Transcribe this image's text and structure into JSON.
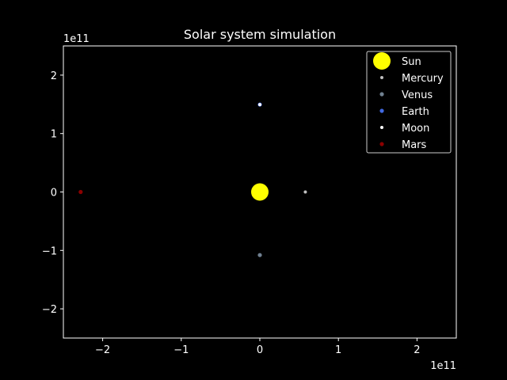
{
  "chart_data": {
    "type": "scatter",
    "title": "Solar system simulation",
    "xlabel": "",
    "ylabel": "",
    "x_offset_label": "1e11",
    "y_offset_label": "1e11",
    "xlim": [
      -250000000000.0,
      250000000000.0
    ],
    "ylim": [
      -250000000000.0,
      250000000000.0
    ],
    "xticks": [
      -200000000000.0,
      -100000000000.0,
      0,
      100000000000.0,
      200000000000.0
    ],
    "yticks": [
      -200000000000.0,
      -100000000000.0,
      0,
      100000000000.0,
      200000000000.0
    ],
    "xtick_labels": [
      "−2",
      "−1",
      "0",
      "1",
      "2"
    ],
    "ytick_labels": [
      "−2",
      "−1",
      "0",
      "1",
      "2"
    ],
    "grid": false,
    "legend_position": "top-right",
    "background": "#000000",
    "foreground": "#ffffff",
    "series": [
      {
        "name": "Sun",
        "color": "#ffff00",
        "size": "large",
        "points": [
          [
            0,
            0
          ]
        ]
      },
      {
        "name": "Mercury",
        "color": "#c0c0c0",
        "size": "tiny",
        "points": [
          [
            57900000000.0,
            0
          ]
        ]
      },
      {
        "name": "Venus",
        "color": "#708090",
        "size": "small",
        "points": [
          [
            0,
            -108000000000.0
          ]
        ]
      },
      {
        "name": "Earth",
        "color": "#4169e1",
        "size": "small",
        "points": [
          [
            0,
            149600000000.0
          ]
        ]
      },
      {
        "name": "Moon",
        "color": "#ffffff",
        "size": "tiny",
        "points": [
          [
            0,
            149600000000.0
          ]
        ]
      },
      {
        "name": "Mars",
        "color": "#8b0000",
        "size": "small",
        "points": [
          [
            -228000000000.0,
            0
          ]
        ]
      }
    ]
  }
}
